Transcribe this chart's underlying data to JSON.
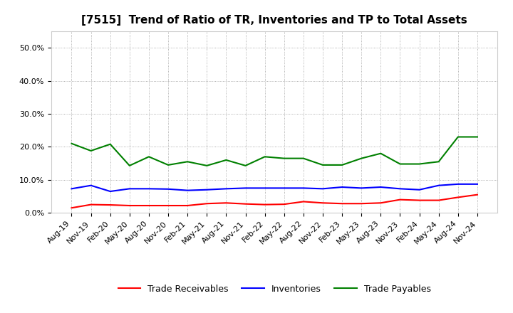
{
  "title": "[7515]  Trend of Ratio of TR, Inventories and TP to Total Assets",
  "x_labels": [
    "Aug-19",
    "Nov-19",
    "Feb-20",
    "May-20",
    "Aug-20",
    "Nov-20",
    "Feb-21",
    "May-21",
    "Aug-21",
    "Nov-21",
    "Feb-22",
    "May-22",
    "Aug-22",
    "Nov-22",
    "Feb-23",
    "May-23",
    "Aug-23",
    "Nov-23",
    "Feb-24",
    "May-24",
    "Aug-24",
    "Nov-24"
  ],
  "trade_receivables": [
    0.015,
    0.025,
    0.024,
    0.022,
    0.022,
    0.022,
    0.022,
    0.028,
    0.03,
    0.027,
    0.025,
    0.026,
    0.034,
    0.03,
    0.028,
    0.028,
    0.03,
    0.04,
    0.038,
    0.038,
    0.047,
    0.055
  ],
  "inventories": [
    0.073,
    0.083,
    0.065,
    0.073,
    0.073,
    0.072,
    0.068,
    0.07,
    0.073,
    0.075,
    0.075,
    0.075,
    0.075,
    0.073,
    0.078,
    0.075,
    0.078,
    0.073,
    0.07,
    0.083,
    0.087,
    0.087
  ],
  "trade_payables": [
    0.21,
    0.188,
    0.208,
    0.143,
    0.17,
    0.145,
    0.155,
    0.143,
    0.16,
    0.143,
    0.17,
    0.165,
    0.165,
    0.145,
    0.145,
    0.165,
    0.18,
    0.148,
    0.148,
    0.155,
    0.23,
    0.23
  ],
  "ylim": [
    0.0,
    0.55
  ],
  "yticks": [
    0.0,
    0.1,
    0.2,
    0.3,
    0.4,
    0.5
  ],
  "line_colors": {
    "trade_receivables": "#ff0000",
    "inventories": "#0000ff",
    "trade_payables": "#008000"
  },
  "legend_labels": [
    "Trade Receivables",
    "Inventories",
    "Trade Payables"
  ],
  "background_color": "#ffffff",
  "grid_color": "#999999",
  "title_fontsize": 11,
  "tick_fontsize": 8,
  "legend_fontsize": 9
}
